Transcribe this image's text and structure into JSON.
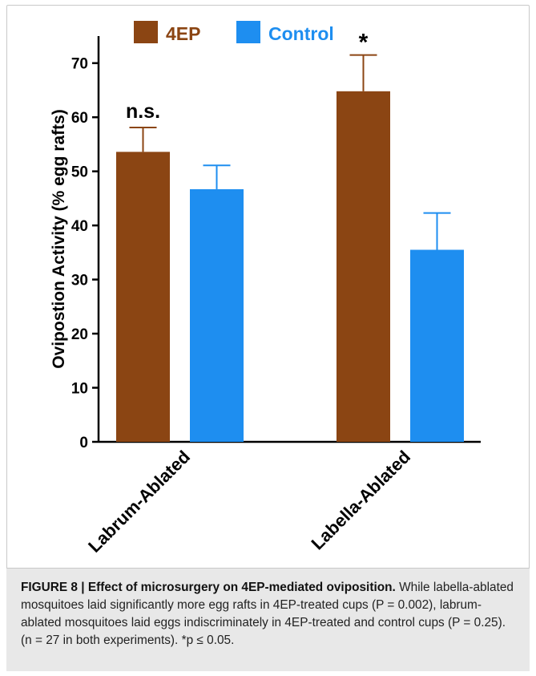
{
  "chart_data": {
    "type": "bar",
    "categories": [
      "Labrum-Ablated",
      "Labella-Ablated"
    ],
    "series": [
      {
        "name": "4EP",
        "color": "#8b4513",
        "values": [
          53.6,
          64.8
        ],
        "error": [
          4.5,
          6.7
        ]
      },
      {
        "name": "Control",
        "color": "#1e8ef0",
        "values": [
          46.7,
          35.5
        ],
        "error": [
          4.4,
          6.8
        ]
      }
    ],
    "annotations": [
      "n.s.",
      "*"
    ],
    "ylabel": "Ovipostion Activity (% egg rafts)",
    "ylim": [
      0,
      75
    ],
    "yticks": [
      0,
      10,
      20,
      30,
      40,
      50,
      60,
      70
    ],
    "legend_position": "top",
    "grid": false
  },
  "caption": {
    "label": "FIGURE 8 | Effect of microsurgery on 4EP-mediated oviposition.",
    "text": " While labella-ablated mosquitoes laid significantly more egg rafts in 4EP-treated cups (P = 0.002), labrum-ablated mosquitoes laid eggs indiscriminately in 4EP-treated and control cups (P = 0.25). (n = 27 in both experiments). *p ≤ 0.05."
  }
}
